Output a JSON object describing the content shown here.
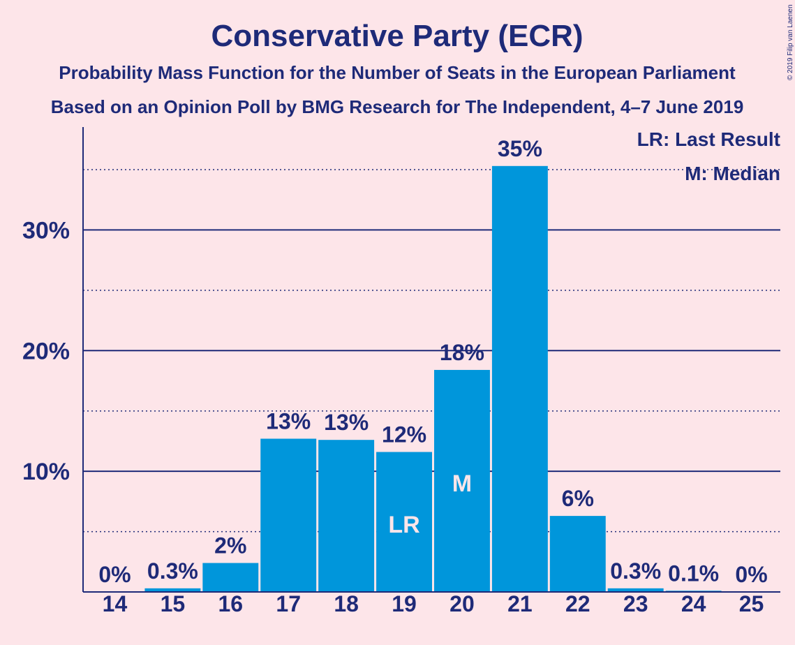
{
  "copyright": "© 2019 Filip van Laenen",
  "chart_data": {
    "type": "bar",
    "title": "Conservative Party (ECR)",
    "subtitle_line1": "Probability Mass Function for the Number of Seats in the European Parliament",
    "subtitle_line2": "Based on an Opinion Poll by BMG Research for The Independent, 4–7 June 2019",
    "categories": [
      "14",
      "15",
      "16",
      "17",
      "18",
      "19",
      "20",
      "21",
      "22",
      "23",
      "24",
      "25"
    ],
    "values": [
      0,
      0.3,
      2.4,
      12.7,
      12.6,
      11.6,
      18.4,
      35.3,
      6.3,
      0.3,
      0.1,
      0
    ],
    "value_labels": [
      "0%",
      "0.3%",
      "2%",
      "13%",
      "13%",
      "12%",
      "18%",
      "35%",
      "6%",
      "0.3%",
      "0.1%",
      "0%"
    ],
    "bar_markers": {
      "19": "LR",
      "20": "M"
    },
    "ylim": [
      0,
      38.5
    ],
    "yticks": [
      10,
      20,
      30
    ],
    "ytick_labels": [
      "10%",
      "20%",
      "30%"
    ],
    "minor_grid": [
      5,
      15,
      25,
      35
    ],
    "legend": [
      "LR: Last Result",
      "M: Median"
    ],
    "legend_placement": "top-right",
    "colors": {
      "bar": "#0096db",
      "text": "#1e2a78",
      "background": "#fde5e9",
      "marker_text": "#fde5e9"
    }
  }
}
